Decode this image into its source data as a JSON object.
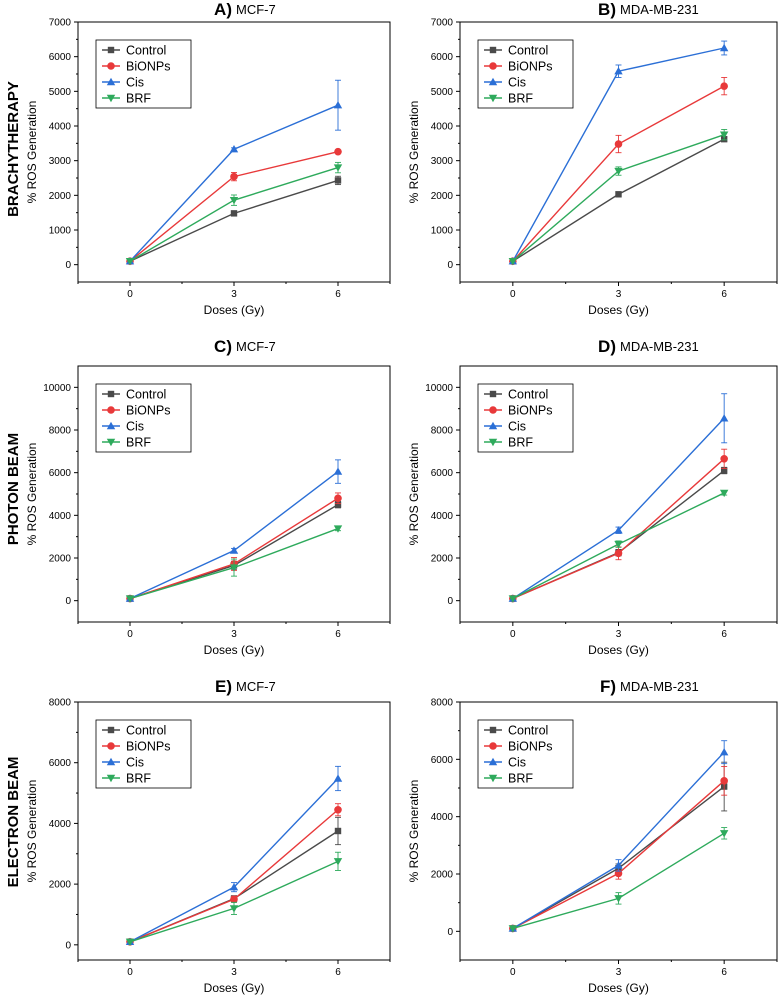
{
  "row_labels": [
    "BRACHYTHERAPY",
    "PHOTON BEAM",
    "ELECTRON BEAM"
  ],
  "series_colors": {
    "Control": "#4a4a4a",
    "BiONPs": "#e8393a",
    "Cis": "#2b6fd6",
    "BRF": "#2eaa5c"
  },
  "series_markers": {
    "Control": "square",
    "BiONPs": "circle",
    "Cis": "triangle-up",
    "BRF": "triangle-down"
  },
  "chart_data": [
    {
      "type": "line",
      "panel": "A)",
      "cell_line": "MCF-7",
      "row": "BRACHYTHERAPY",
      "x": [
        0,
        3,
        6
      ],
      "xlabel": "Doses (Gy)",
      "ylabel": "% ROS Generation",
      "xlim": [
        -1.5,
        7.5
      ],
      "ylim": [
        -500,
        7000
      ],
      "yticks": [
        0,
        1000,
        2000,
        3000,
        4000,
        5000,
        6000,
        7000
      ],
      "xticks": [
        0,
        3,
        6
      ],
      "legend": "top-left",
      "series": [
        {
          "name": "Control",
          "values": [
            100,
            1480,
            2430
          ],
          "errors": [
            0,
            50,
            120
          ]
        },
        {
          "name": "BiONPs",
          "values": [
            100,
            2540,
            3260
          ],
          "errors": [
            0,
            120,
            40
          ]
        },
        {
          "name": "Cis",
          "values": [
            100,
            3330,
            4600
          ],
          "errors": [
            0,
            40,
            720
          ]
        },
        {
          "name": "BRF",
          "values": [
            100,
            1860,
            2800
          ],
          "errors": [
            0,
            150,
            150
          ]
        }
      ]
    },
    {
      "type": "line",
      "panel": "B)",
      "cell_line": "MDA-MB-231",
      "row": "BRACHYTHERAPY",
      "x": [
        0,
        3,
        6
      ],
      "xlabel": "Doses (Gy)",
      "ylabel": "% ROS Generation",
      "xlim": [
        -1.5,
        7.5
      ],
      "ylim": [
        -500,
        7000
      ],
      "yticks": [
        0,
        1000,
        2000,
        3000,
        4000,
        5000,
        6000,
        7000
      ],
      "xticks": [
        0,
        3,
        6
      ],
      "legend": "top-left",
      "series": [
        {
          "name": "Control",
          "values": [
            100,
            2030,
            3620
          ],
          "errors": [
            0,
            40,
            60
          ]
        },
        {
          "name": "BiONPs",
          "values": [
            100,
            3480,
            5150
          ],
          "errors": [
            0,
            250,
            250
          ]
        },
        {
          "name": "Cis",
          "values": [
            100,
            5580,
            6250
          ],
          "errors": [
            0,
            180,
            200
          ]
        },
        {
          "name": "BRF",
          "values": [
            100,
            2700,
            3750
          ],
          "errors": [
            0,
            120,
            150
          ]
        }
      ]
    },
    {
      "type": "line",
      "panel": "C)",
      "cell_line": "MCF-7",
      "row": "PHOTON BEAM",
      "x": [
        0,
        3,
        6
      ],
      "xlabel": "Doses (Gy)",
      "ylabel": "% ROS Generation",
      "xlim": [
        -1.5,
        7.5
      ],
      "ylim": [
        -1000,
        11000
      ],
      "yticks": [
        0,
        2000,
        4000,
        6000,
        8000,
        10000
      ],
      "xticks": [
        0,
        3,
        6
      ],
      "legend": "top-left",
      "series": [
        {
          "name": "Control",
          "values": [
            100,
            1650,
            4500
          ],
          "errors": [
            0,
            200,
            150
          ]
        },
        {
          "name": "BiONPs",
          "values": [
            100,
            1720,
            4800
          ],
          "errors": [
            0,
            300,
            250
          ]
        },
        {
          "name": "Cis",
          "values": [
            100,
            2350,
            6050
          ],
          "errors": [
            0,
            100,
            550
          ]
        },
        {
          "name": "BRF",
          "values": [
            100,
            1550,
            3380
          ],
          "errors": [
            0,
            400,
            100
          ]
        }
      ]
    },
    {
      "type": "line",
      "panel": "D)",
      "cell_line": "MDA-MB-231",
      "row": "PHOTON BEAM",
      "x": [
        0,
        3,
        6
      ],
      "xlabel": "Doses (Gy)",
      "ylabel": "% ROS Generation",
      "xlim": [
        -1.5,
        7.5
      ],
      "ylim": [
        -1000,
        11000
      ],
      "yticks": [
        0,
        2000,
        4000,
        6000,
        8000,
        10000
      ],
      "xticks": [
        0,
        3,
        6
      ],
      "legend": "top-left",
      "series": [
        {
          "name": "Control",
          "values": [
            100,
            2250,
            6100
          ],
          "errors": [
            0,
            150,
            150
          ]
        },
        {
          "name": "BiONPs",
          "values": [
            100,
            2220,
            6650
          ],
          "errors": [
            0,
            300,
            450
          ]
        },
        {
          "name": "Cis",
          "values": [
            100,
            3300,
            8550
          ],
          "errors": [
            0,
            150,
            1150
          ]
        },
        {
          "name": "BRF",
          "values": [
            100,
            2650,
            5050
          ],
          "errors": [
            0,
            150,
            100
          ]
        }
      ]
    },
    {
      "type": "line",
      "panel": "E)",
      "cell_line": "MCF-7",
      "row": "ELECTRON BEAM",
      "x": [
        0,
        3,
        6
      ],
      "xlabel": "Doses (Gy)",
      "ylabel": "% ROS Generation",
      "xlim": [
        -1.5,
        7.5
      ],
      "ylim": [
        -500,
        8000
      ],
      "yticks": [
        0,
        2000,
        4000,
        6000,
        8000
      ],
      "xticks": [
        0,
        3,
        6
      ],
      "legend": "top-left",
      "series": [
        {
          "name": "Control",
          "values": [
            100,
            1520,
            3750
          ],
          "errors": [
            0,
            100,
            450
          ]
        },
        {
          "name": "BiONPs",
          "values": [
            100,
            1500,
            4450
          ],
          "errors": [
            0,
            100,
            200
          ]
        },
        {
          "name": "Cis",
          "values": [
            100,
            1900,
            5480
          ],
          "errors": [
            0,
            150,
            400
          ]
        },
        {
          "name": "BRF",
          "values": [
            100,
            1200,
            2750
          ],
          "errors": [
            0,
            200,
            300
          ]
        }
      ]
    },
    {
      "type": "line",
      "panel": "F)",
      "cell_line": "MDA-MB-231",
      "row": "ELECTRON BEAM",
      "x": [
        0,
        3,
        6
      ],
      "xlabel": "Doses (Gy)",
      "ylabel": "% ROS Generation",
      "xlim": [
        -1.5,
        7.5
      ],
      "ylim": [
        -1000,
        8000
      ],
      "yticks": [
        0,
        2000,
        4000,
        6000,
        8000
      ],
      "xticks": [
        0,
        3,
        6
      ],
      "legend": "top-left",
      "series": [
        {
          "name": "Control",
          "values": [
            100,
            2200,
            5050
          ],
          "errors": [
            0,
            150,
            850
          ]
        },
        {
          "name": "BiONPs",
          "values": [
            100,
            2020,
            5250
          ],
          "errors": [
            0,
            200,
            500
          ]
        },
        {
          "name": "Cis",
          "values": [
            100,
            2300,
            6250
          ],
          "errors": [
            0,
            200,
            400
          ]
        },
        {
          "name": "BRF",
          "values": [
            100,
            1150,
            3420
          ],
          "errors": [
            0,
            200,
            200
          ]
        }
      ]
    }
  ]
}
